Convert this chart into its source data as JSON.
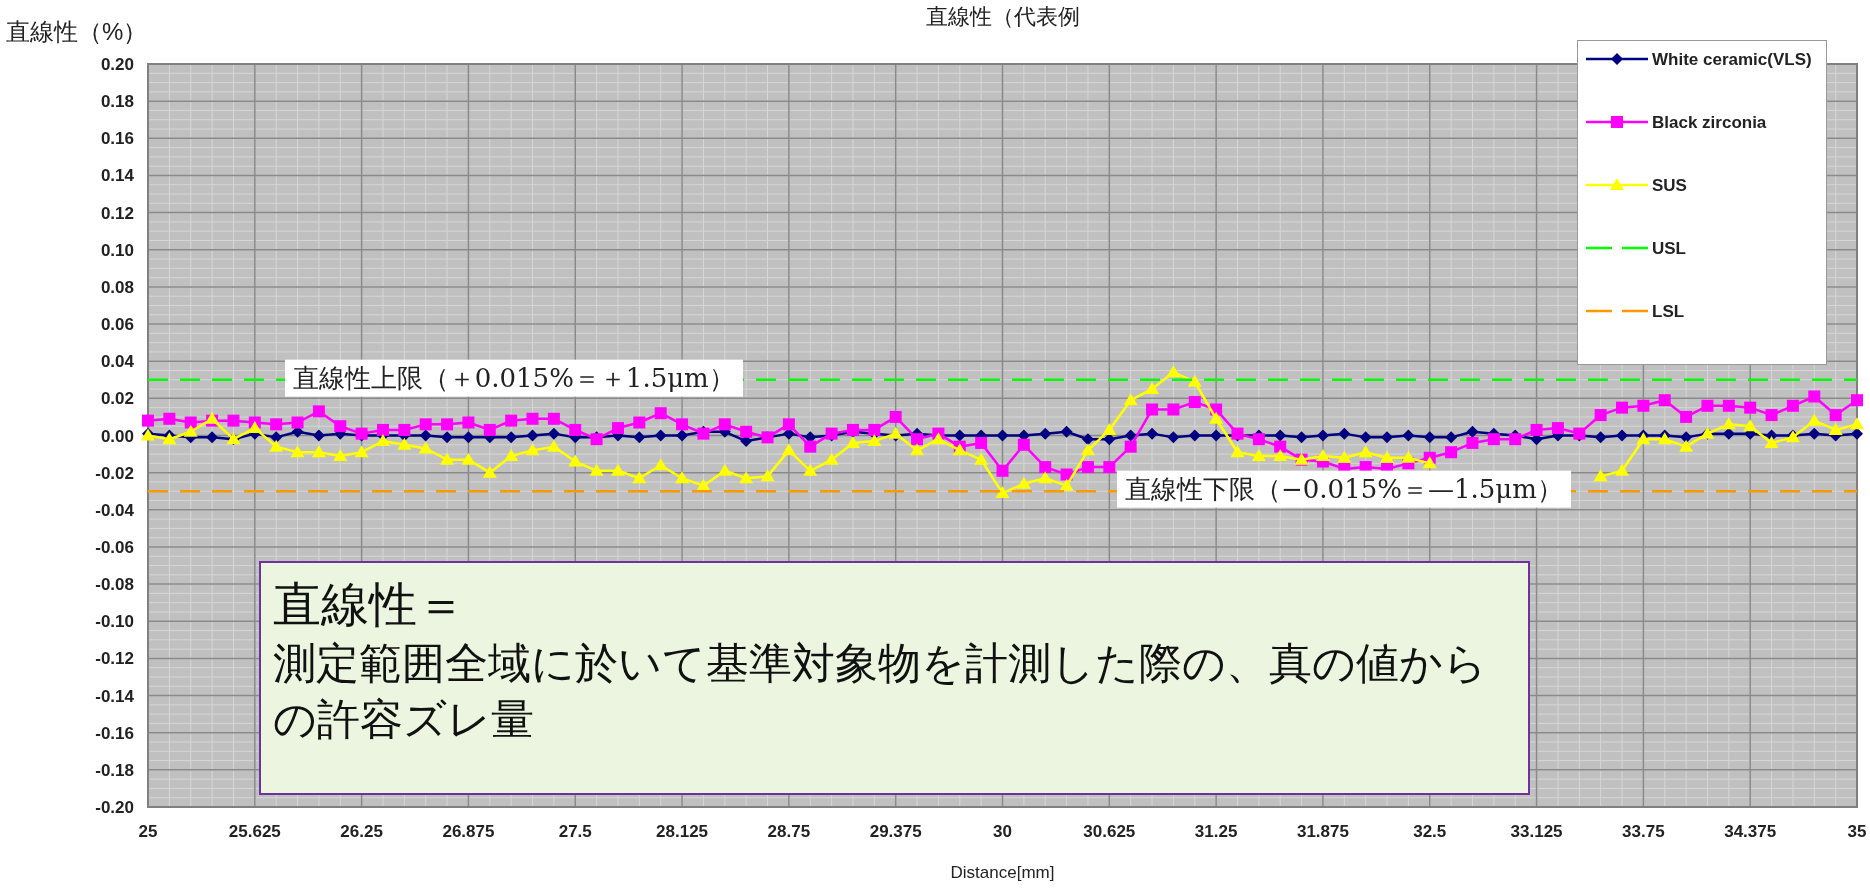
{
  "chart_data": {
    "type": "line",
    "title": "直線性（代表例",
    "xlabel": "Distance[mm]",
    "ylabel": "直線性（%）",
    "x": [
      25,
      25.125,
      25.25,
      25.375,
      25.5,
      25.625,
      25.75,
      25.875,
      26,
      26.125,
      26.25,
      26.375,
      26.5,
      26.625,
      26.75,
      26.875,
      27,
      27.125,
      27.25,
      27.375,
      27.5,
      27.625,
      27.75,
      27.875,
      28,
      28.125,
      28.25,
      28.375,
      28.5,
      28.625,
      28.75,
      28.875,
      29,
      29.125,
      29.25,
      29.375,
      29.5,
      29.625,
      29.75,
      29.875,
      30,
      30.125,
      30.25,
      30.375,
      30.5,
      30.625,
      30.75,
      30.875,
      31,
      31.125,
      31.25,
      31.375,
      31.5,
      31.625,
      31.75,
      31.875,
      32,
      32.125,
      32.25,
      32.375,
      32.5,
      32.625,
      32.75,
      32.875,
      33,
      33.125,
      33.25,
      33.375,
      33.5,
      33.625,
      33.75,
      33.875,
      34,
      34.125,
      34.25,
      34.375,
      34.5,
      34.625,
      34.75,
      34.875,
      35
    ],
    "series": [
      {
        "name": "White ceramic(VLS)",
        "color": "#000080",
        "marker": "diamond",
        "values": [
          0.001,
          0,
          -0.001,
          -0.001,
          -0.002,
          0.001,
          -0.001,
          0.002,
          0,
          0.001,
          0,
          0,
          0,
          0,
          -0.001,
          -0.001,
          -0.001,
          -0.001,
          0,
          0.001,
          -0.001,
          -0.001,
          0,
          -0.001,
          0,
          0,
          0.002,
          0.002,
          -0.003,
          -0.001,
          0.001,
          -0.001,
          0,
          0.002,
          0.001,
          0,
          0.001,
          0,
          0,
          0,
          0,
          0,
          0.001,
          0.002,
          -0.002,
          -0.002,
          0,
          0.001,
          -0.001,
          0,
          0,
          0,
          0,
          0,
          -0.001,
          0,
          0.001,
          -0.001,
          -0.001,
          0,
          -0.001,
          -0.001,
          0.002,
          0.001,
          0,
          -0.002,
          0,
          0,
          -0.001,
          0,
          0,
          0,
          -0.001,
          0.001,
          0.001,
          0.001,
          0,
          0,
          0.001,
          0,
          0.001
        ]
      },
      {
        "name": "Black zirconia",
        "color": "#ff00ff",
        "marker": "square",
        "values": [
          0.008,
          0.009,
          0.007,
          0.008,
          0.008,
          0.007,
          0.006,
          0.007,
          0.013,
          0.005,
          0.001,
          0.003,
          0.003,
          0.006,
          0.006,
          0.007,
          0.003,
          0.008,
          0.009,
          0.009,
          0.003,
          -0.002,
          0.004,
          0.007,
          0.012,
          0.006,
          0.001,
          0.006,
          0.002,
          -0.001,
          0.006,
          -0.006,
          0.001,
          0.003,
          0.003,
          0.01,
          -0.002,
          0.001,
          -0.006,
          -0.004,
          -0.019,
          -0.005,
          -0.017,
          -0.021,
          -0.017,
          -0.017,
          -0.006,
          0.014,
          0.014,
          0.018,
          0.014,
          0.001,
          -0.002,
          -0.006,
          -0.013,
          -0.014,
          -0.018,
          -0.017,
          -0.018,
          -0.015,
          -0.012,
          -0.009,
          -0.004,
          -0.002,
          -0.002,
          0.003,
          0.004,
          0.001,
          0.011,
          0.015,
          0.016,
          0.019,
          0.01,
          0.016,
          0.016,
          0.015,
          0.011,
          0.016,
          0.021,
          0.011,
          0.019
        ]
      },
      {
        "name": "SUS",
        "color": "#ffff00",
        "marker": "triangle",
        "values": [
          0,
          -0.002,
          0.002,
          0.009,
          -0.002,
          0.004,
          -0.006,
          -0.009,
          -0.009,
          -0.011,
          -0.009,
          -0.003,
          -0.005,
          -0.007,
          -0.013,
          -0.013,
          -0.02,
          -0.011,
          -0.008,
          -0.006,
          -0.014,
          -0.019,
          -0.019,
          -0.023,
          -0.016,
          -0.023,
          -0.027,
          -0.019,
          -0.023,
          -0.022,
          -0.008,
          -0.019,
          -0.013,
          -0.004,
          -0.003,
          0.001,
          -0.008,
          -0.002,
          -0.008,
          -0.013,
          -0.031,
          -0.026,
          -0.023,
          -0.027,
          -0.008,
          0.003,
          0.019,
          0.025,
          0.034,
          0.029,
          0.009,
          -0.009,
          -0.011,
          -0.011,
          -0.013,
          -0.011,
          -0.012,
          -0.009,
          -0.012,
          -0.012,
          -0.015,
          null,
          null,
          null,
          null,
          null,
          null,
          null,
          -0.022,
          -0.019,
          -0.002,
          -0.002,
          -0.006,
          0.001,
          0.006,
          0.005,
          -0.004,
          -0.001,
          0.008,
          0.003,
          0.006
        ]
      }
    ],
    "ref_lines": [
      {
        "axis": "y",
        "value": 0.03,
        "label": "USL",
        "color": "#00ff00",
        "line_style": "dashed"
      },
      {
        "axis": "y",
        "value": -0.03,
        "label": "LSL",
        "color": "#ff9900",
        "line_style": "dashed"
      }
    ],
    "xlim": [
      25,
      35
    ],
    "ylim": [
      -0.2,
      0.2
    ],
    "xticks": [
      25,
      25.625,
      26.25,
      26.875,
      27.5,
      28.125,
      28.75,
      29.375,
      30,
      30.625,
      31.25,
      31.875,
      32.5,
      33.125,
      33.75,
      34.375,
      35
    ],
    "yticks": [
      {
        "value": -0.2,
        "label": "-0.20"
      },
      {
        "value": -0.18,
        "label": "-0.18"
      },
      {
        "value": -0.16,
        "label": "-0.16"
      },
      {
        "value": -0.14,
        "label": "-0.14"
      },
      {
        "value": -0.12,
        "label": "-0.12"
      },
      {
        "value": -0.1,
        "label": "-0.10"
      },
      {
        "value": -0.08,
        "label": "-0.08"
      },
      {
        "value": -0.06,
        "label": "-0.06"
      },
      {
        "value": -0.04,
        "label": "-0.04"
      },
      {
        "value": -0.02,
        "label": "-0.02"
      },
      {
        "value": 0,
        "label": "0.00"
      },
      {
        "value": 0.02,
        "label": "0.02"
      },
      {
        "value": 0.04,
        "label": "0.04"
      },
      {
        "value": 0.06,
        "label": "0.06"
      },
      {
        "value": 0.08,
        "label": "0.08"
      },
      {
        "value": 0.1,
        "label": "0.10"
      },
      {
        "value": 0.12,
        "label": "0.12"
      },
      {
        "value": 0.14,
        "label": "0.14"
      },
      {
        "value": 0.16,
        "label": "0.16"
      },
      {
        "value": 0.18,
        "label": "0.18"
      },
      {
        "value": 0.2,
        "label": "0.20"
      }
    ],
    "grid": true,
    "legend": "top right",
    "annotations": [
      {
        "text": "直線性上限（＋0.015%＝＋1.5μm）",
        "x": 25.8,
        "y": 0.03
      },
      {
        "text": "直線性下限（−0.015%＝—1.5μm）",
        "x": 30.67,
        "y": -0.03
      },
      "直線性＝",
      "測定範囲全域に於いて基準対象物を計測した際の、真の値からの許容ズレ量"
    ]
  }
}
